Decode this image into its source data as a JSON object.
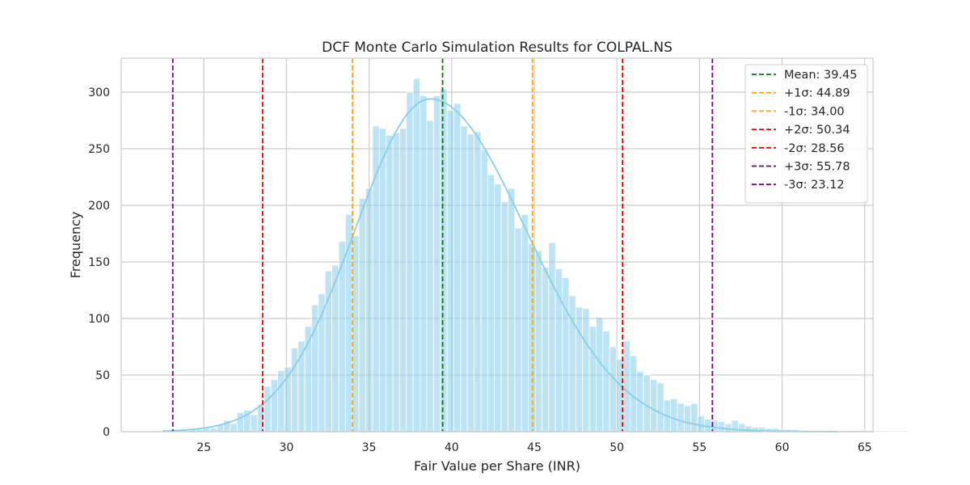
{
  "chart_data": {
    "type": "bar",
    "title": "DCF Monte Carlo Simulation Results for COLPAL.NS",
    "xlabel": "Fair Value per Share (INR)",
    "ylabel": "Frequency",
    "xlim": [
      20.0,
      65.5
    ],
    "ylim": [
      0,
      330
    ],
    "xticks": [
      25,
      30,
      35,
      40,
      45,
      50,
      55,
      60,
      65
    ],
    "yticks": [
      0,
      50,
      100,
      150,
      200,
      250,
      300
    ],
    "grid": true,
    "legend_position": "top-right",
    "colors": {
      "bars": "#87ceeb",
      "kde": "#87ceeb",
      "grid": "#cccccc",
      "frame": "#cccccc",
      "mean": "#008000",
      "sigma1": "#ffa500",
      "sigma2": "#ff0000",
      "sigma3": "#800080"
    },
    "histogram": {
      "bin_start": 22.5,
      "bin_width": 0.41,
      "counts": [
        1,
        1,
        1,
        1,
        2,
        2,
        3,
        3,
        6,
        10,
        7,
        17,
        19,
        15,
        24,
        40,
        46,
        54,
        57,
        74,
        80,
        93,
        112,
        122,
        142,
        147,
        168,
        192,
        173,
        206,
        215,
        270,
        268,
        262,
        264,
        268,
        300,
        312,
        297,
        275,
        297,
        303,
        284,
        290,
        270,
        263,
        265,
        249,
        227,
        219,
        203,
        215,
        180,
        192,
        166,
        160,
        145,
        167,
        144,
        136,
        120,
        110,
        109,
        93,
        101,
        89,
        75,
        64,
        80,
        67,
        53,
        50,
        46,
        43,
        28,
        29,
        25,
        23,
        25,
        14,
        11,
        10,
        9,
        7,
        10,
        7,
        5,
        4,
        4,
        3,
        3,
        2,
        2,
        2,
        1,
        1,
        1,
        1,
        1,
        1,
        1,
        1,
        1,
        1,
        1,
        1,
        1,
        1,
        1,
        1
      ]
    },
    "kde": {
      "mean": 38.7,
      "sd_left": 4.55,
      "sd_right": 5.8,
      "peak": 294,
      "range": [
        22.5,
        63.5
      ]
    },
    "vlines": [
      {
        "label": "Mean: 39.45",
        "x": 39.45,
        "color": "#008000"
      },
      {
        "label": "+1σ: 44.89",
        "x": 44.89,
        "color": "#ffa500"
      },
      {
        "label": "-1σ: 34.00",
        "x": 34.0,
        "color": "#ffa500"
      },
      {
        "label": "+2σ: 50.34",
        "x": 50.34,
        "color": "#ff0000"
      },
      {
        "label": "-2σ: 28.56",
        "x": 28.56,
        "color": "#ff0000"
      },
      {
        "label": "+3σ: 55.78",
        "x": 55.78,
        "color": "#800080"
      },
      {
        "label": "-3σ: 23.12",
        "x": 23.12,
        "color": "#800080"
      }
    ]
  }
}
